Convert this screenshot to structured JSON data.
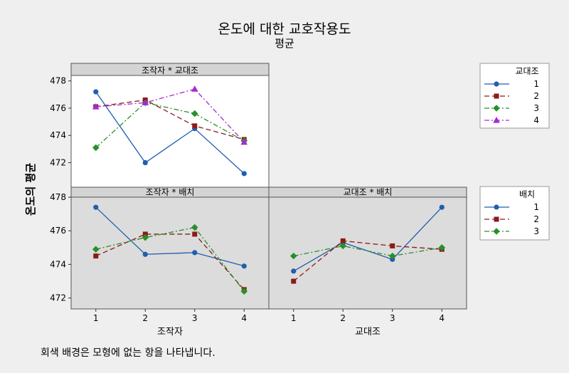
{
  "title": "온도에 대한 교호작용도",
  "subtitle": "평균",
  "ylabel": "온도의 평균",
  "footnote": "회색 배경은 모형에 없는 항을 나타냅니다.",
  "legend_shift": {
    "title": "교대조",
    "entries": [
      "1",
      "2",
      "3",
      "4"
    ]
  },
  "legend_batch": {
    "title": "배치",
    "entries": [
      "1",
      "2",
      "3"
    ]
  },
  "chart_data": [
    {
      "type": "line",
      "title": "조작자 * 교대조",
      "xlabel": "",
      "ylabel": "온도의 평균",
      "categories": [
        "1",
        "2",
        "3",
        "4"
      ],
      "ylim": [
        470.2,
        478.4
      ],
      "yticks": [
        472,
        474,
        476,
        478
      ],
      "background": "white",
      "series": [
        {
          "name": "1",
          "values": [
            477.2,
            472.0,
            474.5,
            471.2
          ]
        },
        {
          "name": "2",
          "values": [
            476.1,
            476.6,
            474.7,
            473.7
          ]
        },
        {
          "name": "3",
          "values": [
            473.1,
            476.4,
            475.6,
            473.6
          ]
        },
        {
          "name": "4",
          "values": [
            476.1,
            476.4,
            477.4,
            473.5
          ]
        }
      ]
    },
    {
      "type": "line",
      "title": "조작자 * 배치",
      "xlabel": "조작자",
      "ylabel": "온도의 평균",
      "categories": [
        "1",
        "2",
        "3",
        "4"
      ],
      "ylim": [
        471.35,
        478.0
      ],
      "yticks": [
        472,
        474,
        476,
        478
      ],
      "background": "gray",
      "series": [
        {
          "name": "1",
          "values": [
            477.4,
            474.6,
            474.7,
            473.9
          ]
        },
        {
          "name": "2",
          "values": [
            474.5,
            475.8,
            475.8,
            472.5
          ]
        },
        {
          "name": "3",
          "values": [
            474.9,
            475.6,
            476.2,
            472.4
          ]
        }
      ]
    },
    {
      "type": "line",
      "title": "교대조 * 배치",
      "xlabel": "교대조",
      "ylabel": "",
      "categories": [
        "1",
        "2",
        "3",
        "4"
      ],
      "ylim": [
        471.35,
        478.0
      ],
      "yticks": [
        472,
        474,
        476,
        478
      ],
      "background": "gray",
      "series": [
        {
          "name": "1",
          "values": [
            473.6,
            475.3,
            474.3,
            477.4
          ]
        },
        {
          "name": "2",
          "values": [
            473.0,
            475.4,
            475.1,
            474.9
          ]
        },
        {
          "name": "3",
          "values": [
            474.5,
            475.1,
            474.5,
            475.0
          ]
        }
      ]
    }
  ],
  "colors": {
    "series1": "#1f5fae",
    "series2": "#8b1a1a",
    "series3": "#2a8f2a",
    "series4": "#a52ad1",
    "panel_gray": "#dcdcdc",
    "strip_gray": "#d4d4d4"
  },
  "line_styles": [
    "solid",
    "dash",
    "dash-dot",
    "dash-dot"
  ],
  "markers": [
    "circle",
    "square",
    "diamond",
    "triangle"
  ]
}
